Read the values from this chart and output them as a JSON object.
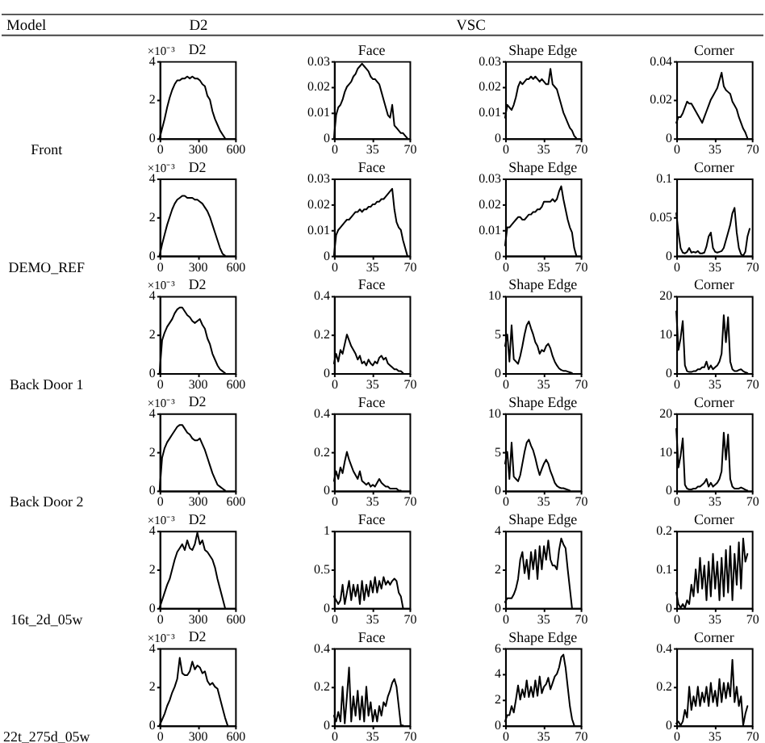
{
  "chart_data": [
    {
      "type": "other",
      "annotations": [
        "Model",
        "D2",
        "VSC"
      ]
    },
    {
      "type": "other",
      "title": "Front"
    },
    {
      "type": "line",
      "title": "D2",
      "annotations": [
        "×10⁻³"
      ],
      "color": "#000000",
      "xlim": [
        0,
        600
      ],
      "xticks": [
        0,
        300,
        600
      ],
      "ylim": [
        0,
        4
      ],
      "yticks": [
        0,
        2,
        4
      ],
      "x": [
        0,
        20,
        40,
        60,
        80,
        100,
        120,
        140,
        160,
        180,
        200,
        220,
        240,
        260,
        280,
        300,
        320,
        340,
        360,
        380,
        400,
        420,
        440,
        460,
        480,
        500,
        520
      ],
      "values": [
        0,
        0.5,
        1,
        1.6,
        2.1,
        2.5,
        2.8,
        3,
        3,
        3.1,
        3.1,
        3.2,
        3.1,
        3.2,
        3.1,
        3.1,
        3,
        2.8,
        2.7,
        2.2,
        2,
        1.4,
        1,
        0.7,
        0.4,
        0.2,
        0
      ]
    },
    {
      "type": "line",
      "title": "Face",
      "color": "#000000",
      "xlim": [
        0,
        70
      ],
      "xticks": [
        0,
        35,
        70
      ],
      "ylim": [
        0,
        0.03
      ],
      "yticks": [
        0,
        0.01,
        0.02,
        0.03
      ],
      "x": [
        0,
        2,
        4,
        6,
        8,
        10,
        12,
        14,
        16,
        18,
        20,
        22,
        24,
        26,
        28,
        30,
        32,
        34,
        36,
        38,
        40,
        42,
        44,
        46,
        48,
        50,
        52,
        54,
        56,
        58,
        60,
        62,
        64,
        66,
        68
      ],
      "values": [
        0,
        0.009,
        0.012,
        0.013,
        0.015,
        0.018,
        0.02,
        0.021,
        0.022,
        0.024,
        0.025,
        0.027,
        0.028,
        0.029,
        0.028,
        0.027,
        0.026,
        0.024,
        0.023,
        0.023,
        0.022,
        0.021,
        0.018,
        0.015,
        0.012,
        0.009,
        0.008,
        0.013,
        0.005,
        0.004,
        0.003,
        0.002,
        0.002,
        0.001,
        0
      ]
    },
    {
      "type": "line",
      "title": "Shape Edge",
      "color": "#000000",
      "xlim": [
        0,
        70
      ],
      "xticks": [
        0,
        35,
        70
      ],
      "ylim": [
        0,
        0.03
      ],
      "yticks": [
        0,
        0.01,
        0.02,
        0.03
      ],
      "x": [
        0,
        2,
        4,
        6,
        8,
        10,
        12,
        14,
        16,
        18,
        20,
        22,
        24,
        26,
        28,
        30,
        32,
        34,
        36,
        38,
        40,
        42,
        44,
        46,
        48,
        50,
        52,
        54,
        56,
        58,
        60,
        62,
        64,
        66
      ],
      "values": [
        0.008,
        0.013,
        0.012,
        0.011,
        0.013,
        0.016,
        0.02,
        0.022,
        0.021,
        0.022,
        0.023,
        0.023,
        0.024,
        0.023,
        0.024,
        0.023,
        0.022,
        0.023,
        0.022,
        0.021,
        0.021,
        0.027,
        0.021,
        0.02,
        0.019,
        0.016,
        0.013,
        0.01,
        0.008,
        0.006,
        0.004,
        0.003,
        0.001,
        0
      ]
    },
    {
      "type": "line",
      "title": "Corner",
      "color": "#000000",
      "xlim": [
        0,
        70
      ],
      "xticks": [
        0,
        35,
        70
      ],
      "ylim": [
        0,
        0.04
      ],
      "yticks": [
        0,
        0.02,
        0.04
      ],
      "x": [
        0,
        2,
        4,
        6,
        8,
        10,
        12,
        14,
        16,
        18,
        20,
        22,
        24,
        26,
        28,
        30,
        32,
        34,
        36,
        38,
        40,
        42,
        44,
        46,
        48,
        50,
        52,
        54,
        56,
        58,
        60,
        62,
        64,
        66
      ],
      "values": [
        0.008,
        0.011,
        0.011,
        0.013,
        0.016,
        0.019,
        0.018,
        0.018,
        0.016,
        0.014,
        0.012,
        0.01,
        0.008,
        0.011,
        0.014,
        0.017,
        0.02,
        0.022,
        0.024,
        0.026,
        0.03,
        0.034,
        0.027,
        0.025,
        0.024,
        0.023,
        0.019,
        0.017,
        0.015,
        0.011,
        0.008,
        0.005,
        0.003,
        0
      ]
    },
    {
      "type": "other",
      "title": "DEMO_REF"
    },
    {
      "type": "line",
      "title": "D2",
      "annotations": [
        "×10⁻³"
      ],
      "color": "#000000",
      "xlim": [
        0,
        600
      ],
      "xticks": [
        0,
        300,
        600
      ],
      "ylim": [
        0,
        4
      ],
      "yticks": [
        0,
        2,
        4
      ],
      "x": [
        0,
        20,
        40,
        60,
        80,
        100,
        120,
        140,
        160,
        180,
        200,
        220,
        240,
        260,
        280,
        300,
        320,
        340,
        360,
        380,
        400,
        420,
        440,
        460,
        480,
        500,
        520
      ],
      "values": [
        0,
        0.6,
        1.1,
        1.6,
        2,
        2.4,
        2.7,
        2.9,
        3,
        3.1,
        3.1,
        3,
        3,
        3,
        2.9,
        2.9,
        2.8,
        2.7,
        2.5,
        2.3,
        2,
        1.6,
        1.2,
        0.8,
        0.4,
        0.1,
        0
      ]
    },
    {
      "type": "line",
      "title": "Face",
      "color": "#000000",
      "xlim": [
        0,
        70
      ],
      "xticks": [
        0,
        35,
        70
      ],
      "ylim": [
        0,
        0.03
      ],
      "yticks": [
        0,
        0.01,
        0.02,
        0.03
      ],
      "x": [
        0,
        2,
        4,
        6,
        8,
        10,
        12,
        14,
        16,
        18,
        20,
        22,
        24,
        26,
        28,
        30,
        32,
        34,
        36,
        38,
        40,
        42,
        44,
        46,
        48,
        50,
        52,
        54,
        56,
        58,
        60,
        62,
        64,
        66,
        68
      ],
      "values": [
        0,
        0.008,
        0.01,
        0.011,
        0.012,
        0.013,
        0.014,
        0.014,
        0.015,
        0.016,
        0.017,
        0.017,
        0.018,
        0.017,
        0.018,
        0.018,
        0.019,
        0.019,
        0.02,
        0.02,
        0.021,
        0.021,
        0.022,
        0.022,
        0.023,
        0.024,
        0.025,
        0.026,
        0.018,
        0.013,
        0.011,
        0.01,
        0.006,
        0.003,
        0
      ]
    },
    {
      "type": "line",
      "title": "Shape Edge",
      "color": "#000000",
      "xlim": [
        0,
        70
      ],
      "xticks": [
        0,
        35,
        70
      ],
      "ylim": [
        0,
        0.03
      ],
      "yticks": [
        0,
        0.01,
        0.02,
        0.03
      ],
      "x": [
        0,
        2,
        4,
        6,
        8,
        10,
        12,
        14,
        16,
        18,
        20,
        22,
        24,
        26,
        28,
        30,
        32,
        34,
        36,
        38,
        40,
        42,
        44,
        46,
        48,
        50,
        52,
        54,
        56,
        58,
        60,
        62,
        64,
        66
      ],
      "values": [
        0.004,
        0.011,
        0.011,
        0.012,
        0.013,
        0.014,
        0.015,
        0.015,
        0.014,
        0.014,
        0.015,
        0.016,
        0.016,
        0.017,
        0.017,
        0.018,
        0.018,
        0.019,
        0.021,
        0.021,
        0.021,
        0.021,
        0.022,
        0.021,
        0.022,
        0.025,
        0.027,
        0.022,
        0.018,
        0.014,
        0.011,
        0.009,
        0.003,
        0
      ]
    },
    {
      "type": "line",
      "title": "Corner",
      "color": "#000000",
      "xlim": [
        0,
        70
      ],
      "xticks": [
        0,
        35,
        70
      ],
      "ylim": [
        0,
        0.1
      ],
      "yticks": [
        0,
        0.05,
        0.1
      ],
      "x": [
        0,
        2,
        4,
        6,
        8,
        10,
        12,
        14,
        16,
        18,
        20,
        22,
        24,
        26,
        28,
        30,
        32,
        34,
        36,
        38,
        40,
        42,
        44,
        46,
        48,
        50,
        52,
        54,
        56,
        58,
        60,
        62,
        64,
        66,
        68
      ],
      "values": [
        0.055,
        0.03,
        0.01,
        0.004,
        0.003,
        0.005,
        0.01,
        0.004,
        0.005,
        0.004,
        0.006,
        0.003,
        0.003,
        0.004,
        0.012,
        0.025,
        0.03,
        0.01,
        0.005,
        0.004,
        0.005,
        0.006,
        0.01,
        0.02,
        0.03,
        0.04,
        0.055,
        0.062,
        0.03,
        0.01,
        0.002,
        0,
        0.005,
        0.025,
        0.035
      ]
    },
    {
      "type": "other",
      "title": "Back Door 1"
    },
    {
      "type": "line",
      "title": "D2",
      "annotations": [
        "×10⁻³"
      ],
      "color": "#000000",
      "xlim": [
        0,
        600
      ],
      "xticks": [
        0,
        300,
        600
      ],
      "ylim": [
        0,
        4
      ],
      "yticks": [
        0,
        2,
        4
      ],
      "x": [
        0,
        20,
        40,
        60,
        80,
        100,
        120,
        140,
        160,
        180,
        200,
        220,
        240,
        260,
        280,
        300,
        320,
        340,
        360,
        380,
        400,
        420,
        440,
        460,
        480,
        500,
        520
      ],
      "values": [
        0,
        1.7,
        2.1,
        2.4,
        2.6,
        2.8,
        3.1,
        3.3,
        3.4,
        3.4,
        3.2,
        3,
        2.9,
        2.7,
        2.6,
        2.7,
        2.8,
        2.5,
        2.3,
        1.8,
        1.5,
        1,
        0.7,
        0.4,
        0.2,
        0.1,
        0
      ]
    },
    {
      "type": "line",
      "title": "Face",
      "color": "#000000",
      "xlim": [
        0,
        70
      ],
      "xticks": [
        0,
        35,
        70
      ],
      "ylim": [
        0,
        0.4
      ],
      "yticks": [
        0,
        0.2,
        0.4
      ],
      "x": [
        0,
        2,
        4,
        6,
        8,
        10,
        12,
        14,
        16,
        18,
        20,
        22,
        24,
        26,
        28,
        30,
        32,
        34,
        36,
        38,
        40,
        42,
        44,
        46,
        48,
        50,
        52,
        54,
        56,
        58,
        60,
        62,
        64
      ],
      "values": [
        0.05,
        0.1,
        0.06,
        0.12,
        0.1,
        0.15,
        0.2,
        0.17,
        0.14,
        0.12,
        0.1,
        0.07,
        0.09,
        0.05,
        0.06,
        0.04,
        0.07,
        0.05,
        0.04,
        0.06,
        0.05,
        0.08,
        0.09,
        0.07,
        0.08,
        0.05,
        0.04,
        0.03,
        0.02,
        0.02,
        0.01,
        0.01,
        0
      ]
    },
    {
      "type": "line",
      "title": "Shape Edge",
      "color": "#000000",
      "xlim": [
        0,
        70
      ],
      "xticks": [
        0,
        35,
        70
      ],
      "ylim": [
        0,
        10
      ],
      "yticks": [
        0,
        5,
        10
      ],
      "x": [
        0,
        2,
        4,
        6,
        8,
        10,
        12,
        14,
        16,
        18,
        20,
        22,
        24,
        26,
        28,
        30,
        32,
        34,
        36,
        38,
        40,
        42,
        44,
        46,
        48,
        50,
        52,
        54,
        56,
        58,
        60,
        62
      ],
      "values": [
        3.5,
        5,
        1.5,
        6.2,
        1.8,
        1.5,
        1.2,
        2.2,
        3.5,
        5,
        6.2,
        6.7,
        5.8,
        5,
        4,
        3.5,
        2.5,
        3,
        2.8,
        3.5,
        3.8,
        3.2,
        2.2,
        1.5,
        1,
        0.6,
        0.4,
        0.3,
        0.3,
        0.2,
        0.1,
        0
      ]
    },
    {
      "type": "line",
      "title": "Corner",
      "color": "#000000",
      "xlim": [
        0,
        70
      ],
      "xticks": [
        0,
        35,
        70
      ],
      "ylim": [
        0,
        20
      ],
      "yticks": [
        0,
        10,
        20
      ],
      "x": [
        0,
        2,
        4,
        6,
        8,
        10,
        12,
        14,
        16,
        18,
        20,
        22,
        24,
        26,
        28,
        30,
        32,
        34,
        36,
        38,
        40,
        42,
        44,
        46,
        48,
        50,
        52,
        54,
        56,
        58,
        60,
        62,
        64,
        66
      ],
      "values": [
        16,
        6,
        9,
        13.5,
        2,
        0.5,
        0.3,
        0.3,
        0.5,
        0.5,
        1,
        1,
        1.5,
        1.5,
        3,
        1,
        2,
        1,
        1.5,
        2,
        3,
        5,
        15,
        8,
        14.5,
        3,
        1,
        0.5,
        0.5,
        0.8,
        1,
        0.5,
        0.2,
        0
      ]
    },
    {
      "type": "other",
      "title": "Back Door 2"
    },
    {
      "type": "line",
      "title": "D2",
      "annotations": [
        "×10⁻³"
      ],
      "color": "#000000",
      "xlim": [
        0,
        600
      ],
      "xticks": [
        0,
        300,
        600
      ],
      "ylim": [
        0,
        4
      ],
      "yticks": [
        0,
        2,
        4
      ],
      "x": [
        0,
        20,
        40,
        60,
        80,
        100,
        120,
        140,
        160,
        180,
        200,
        220,
        240,
        260,
        280,
        300,
        320,
        340,
        360,
        380,
        400,
        420,
        440,
        460,
        480,
        500,
        520
      ],
      "values": [
        0,
        1.7,
        2.2,
        2.5,
        2.7,
        2.9,
        3.1,
        3.3,
        3.4,
        3.4,
        3.2,
        3,
        2.9,
        2.7,
        2.6,
        2.6,
        2.7,
        2.4,
        2.1,
        1.7,
        1.3,
        0.9,
        0.6,
        0.3,
        0.2,
        0.1,
        0
      ]
    },
    {
      "type": "line",
      "title": "Face",
      "color": "#000000",
      "xlim": [
        0,
        70
      ],
      "xticks": [
        0,
        35,
        70
      ],
      "ylim": [
        0,
        0.4
      ],
      "yticks": [
        0,
        0.2,
        0.4
      ],
      "x": [
        0,
        2,
        4,
        6,
        8,
        10,
        12,
        14,
        16,
        18,
        20,
        22,
        24,
        26,
        28,
        30,
        32,
        34,
        36,
        38,
        40,
        42,
        44,
        46,
        48,
        50,
        52,
        54,
        56,
        58,
        60,
        62
      ],
      "values": [
        0.05,
        0.1,
        0.06,
        0.12,
        0.09,
        0.15,
        0.2,
        0.16,
        0.13,
        0.1,
        0.08,
        0.06,
        0.1,
        0.05,
        0.04,
        0.03,
        0.04,
        0.02,
        0.03,
        0.02,
        0.04,
        0.06,
        0.04,
        0.03,
        0.02,
        0.02,
        0.01,
        0.01,
        0.01,
        0.01,
        0,
        0
      ]
    },
    {
      "type": "line",
      "title": "Shape Edge",
      "color": "#000000",
      "xlim": [
        0,
        70
      ],
      "xticks": [
        0,
        35,
        70
      ],
      "ylim": [
        0,
        10
      ],
      "yticks": [
        0,
        5,
        10
      ],
      "x": [
        0,
        2,
        4,
        6,
        8,
        10,
        12,
        14,
        16,
        18,
        20,
        22,
        24,
        26,
        28,
        30,
        32,
        34,
        36,
        38,
        40,
        42,
        44,
        46,
        48,
        50,
        52,
        54,
        56,
        58,
        60
      ],
      "values": [
        3.5,
        5,
        1.5,
        6.2,
        1.8,
        1.5,
        1.2,
        2,
        3.5,
        5,
        6.2,
        6.6,
        5.8,
        5.2,
        4.2,
        3,
        2,
        2.8,
        3.5,
        4,
        3.5,
        2.5,
        1.8,
        1,
        0.6,
        0.4,
        0.3,
        0.3,
        0.2,
        0.1,
        0
      ]
    },
    {
      "type": "line",
      "title": "Corner",
      "color": "#000000",
      "xlim": [
        0,
        70
      ],
      "xticks": [
        0,
        35,
        70
      ],
      "ylim": [
        0,
        20
      ],
      "yticks": [
        0,
        10,
        20
      ],
      "x": [
        0,
        2,
        4,
        6,
        8,
        10,
        12,
        14,
        16,
        18,
        20,
        22,
        24,
        26,
        28,
        30,
        32,
        34,
        36,
        38,
        40,
        42,
        44,
        46,
        48,
        50,
        52,
        54,
        56,
        58,
        60,
        62,
        64,
        66
      ],
      "values": [
        16,
        6,
        9,
        13.5,
        1.5,
        0.5,
        0.3,
        0.3,
        0.5,
        0.5,
        1,
        1,
        1.5,
        2,
        3,
        1,
        2,
        1,
        1.5,
        2,
        3,
        5,
        15,
        8,
        14.5,
        3,
        1,
        0.5,
        0.5,
        0.5,
        0.8,
        0.5,
        0.2,
        0
      ]
    },
    {
      "type": "other",
      "title": "16t_2d_05w"
    },
    {
      "type": "line",
      "title": "D2",
      "annotations": [
        "×10⁻³"
      ],
      "color": "#000000",
      "xlim": [
        0,
        600
      ],
      "xticks": [
        0,
        300,
        600
      ],
      "ylim": [
        0,
        4
      ],
      "yticks": [
        0,
        2,
        4
      ],
      "x": [
        0,
        20,
        40,
        60,
        80,
        100,
        120,
        140,
        160,
        180,
        200,
        220,
        240,
        260,
        280,
        300,
        320,
        340,
        360,
        380,
        400,
        420,
        440,
        460,
        480,
        500,
        520
      ],
      "values": [
        0,
        0.4,
        0.8,
        1.2,
        1.5,
        2,
        2.5,
        2.9,
        3.1,
        3.3,
        3,
        3.5,
        3.1,
        3,
        3.3,
        3.9,
        3.3,
        3.5,
        3,
        2.9,
        2.7,
        2.5,
        2.1,
        1.5,
        1,
        0.5,
        0
      ]
    },
    {
      "type": "line",
      "title": "Face",
      "color": "#000000",
      "xlim": [
        0,
        70
      ],
      "xticks": [
        0,
        35,
        70
      ],
      "ylim": [
        0,
        1
      ],
      "yticks": [
        0,
        0.5,
        1
      ],
      "x": [
        0,
        2,
        4,
        6,
        8,
        10,
        12,
        14,
        16,
        18,
        20,
        22,
        24,
        26,
        28,
        30,
        32,
        34,
        36,
        38,
        40,
        42,
        44,
        46,
        48,
        50,
        52,
        54,
        56,
        58,
        60,
        62,
        64
      ],
      "values": [
        0.15,
        0.1,
        0.05,
        0.1,
        0.3,
        0.05,
        0.2,
        0.35,
        0.1,
        0.3,
        0.15,
        0.3,
        0.05,
        0.35,
        0.1,
        0.3,
        0.15,
        0.35,
        0.2,
        0.4,
        0.2,
        0.35,
        0.25,
        0.4,
        0.3,
        0.35,
        0.3,
        0.35,
        0.38,
        0.35,
        0.2,
        0.15,
        0
      ]
    },
    {
      "type": "line",
      "title": "Shape Edge",
      "color": "#000000",
      "xlim": [
        0,
        70
      ],
      "xticks": [
        0,
        35,
        70
      ],
      "ylim": [
        0,
        4
      ],
      "yticks": [
        0,
        2,
        4
      ],
      "x": [
        0,
        2,
        4,
        6,
        8,
        10,
        12,
        14,
        16,
        18,
        20,
        22,
        24,
        26,
        28,
        30,
        32,
        34,
        36,
        38,
        40,
        42,
        44,
        46,
        48,
        50,
        52,
        54,
        56,
        58,
        60,
        62
      ],
      "values": [
        0.3,
        0.5,
        0.5,
        0.5,
        0.7,
        1,
        1.5,
        2.5,
        2.9,
        1.8,
        2.5,
        1.5,
        2.9,
        2,
        3,
        1.5,
        3.2,
        2,
        3.2,
        2.5,
        3.5,
        2.5,
        2.2,
        2.2,
        2,
        3,
        3.6,
        3.3,
        3.1,
        2,
        1,
        0
      ]
    },
    {
      "type": "line",
      "title": "Corner",
      "color": "#000000",
      "xlim": [
        0,
        70
      ],
      "xticks": [
        0,
        35,
        70
      ],
      "ylim": [
        0,
        0.2
      ],
      "yticks": [
        0,
        0.1,
        0.2
      ],
      "x": [
        0,
        2,
        4,
        6,
        8,
        10,
        12,
        14,
        16,
        18,
        20,
        22,
        24,
        26,
        28,
        30,
        32,
        34,
        36,
        38,
        40,
        42,
        44,
        46,
        48,
        50,
        52,
        54,
        56,
        58,
        60,
        62,
        64,
        66
      ],
      "values": [
        0.04,
        0.01,
        0,
        0.01,
        0,
        0.02,
        0.01,
        0.06,
        0.03,
        0.1,
        0.04,
        0.13,
        0.05,
        0.11,
        0.02,
        0.12,
        0.03,
        0.14,
        0.05,
        0.12,
        0.02,
        0.13,
        0.03,
        0.15,
        0.04,
        0.16,
        0.02,
        0.14,
        0.06,
        0.17,
        0.05,
        0.18,
        0.12,
        0.14
      ]
    },
    {
      "type": "other",
      "title": "22t_275d_05w"
    },
    {
      "type": "line",
      "title": "D2",
      "annotations": [
        "×10⁻³"
      ],
      "color": "#000000",
      "xlim": [
        0,
        600
      ],
      "xticks": [
        0,
        300,
        600
      ],
      "ylim": [
        0,
        4
      ],
      "yticks": [
        0,
        2,
        4
      ],
      "x": [
        0,
        20,
        40,
        60,
        80,
        100,
        120,
        140,
        160,
        180,
        200,
        220,
        240,
        260,
        280,
        300,
        320,
        340,
        360,
        380,
        400,
        420,
        440,
        460,
        480,
        500,
        520,
        540
      ],
      "values": [
        0,
        0.3,
        0.6,
        1,
        1.3,
        1.7,
        2,
        2.4,
        3.5,
        2.7,
        2.6,
        2.6,
        2.8,
        3.3,
        2.9,
        3.1,
        3,
        2.7,
        2.8,
        2.3,
        2.1,
        2.2,
        2,
        1.9,
        1.4,
        0.9,
        0.4,
        0
      ]
    },
    {
      "type": "line",
      "title": "Face",
      "color": "#000000",
      "xlim": [
        0,
        70
      ],
      "xticks": [
        0,
        35,
        70
      ],
      "ylim": [
        0,
        0.4
      ],
      "yticks": [
        0,
        0.2,
        0.4
      ],
      "x": [
        0,
        2,
        4,
        6,
        8,
        10,
        12,
        14,
        16,
        18,
        20,
        22,
        24,
        26,
        28,
        30,
        32,
        34,
        36,
        38,
        40,
        42,
        44,
        46,
        48,
        50,
        52,
        54,
        56,
        58,
        60,
        62,
        64
      ],
      "values": [
        0.05,
        0.02,
        0.07,
        0.02,
        0.2,
        0.01,
        0.15,
        0.3,
        0.02,
        0.15,
        0.05,
        0.18,
        0.03,
        0.15,
        0.02,
        0.2,
        0.05,
        0.12,
        0.02,
        0.08,
        0.02,
        0.1,
        0.05,
        0.12,
        0.1,
        0.15,
        0.18,
        0.22,
        0.24,
        0.2,
        0.1,
        0,
        0
      ]
    },
    {
      "type": "line",
      "title": "Shape Edge",
      "color": "#000000",
      "xlim": [
        0,
        70
      ],
      "xticks": [
        0,
        35,
        70
      ],
      "ylim": [
        0,
        6
      ],
      "yticks": [
        0,
        2,
        4,
        6
      ],
      "x": [
        0,
        2,
        4,
        6,
        8,
        10,
        12,
        14,
        16,
        18,
        20,
        22,
        24,
        26,
        28,
        30,
        32,
        34,
        36,
        38,
        40,
        42,
        44,
        46,
        48,
        50,
        52,
        54,
        56,
        58,
        60,
        62,
        64
      ],
      "values": [
        0.3,
        0.8,
        0.8,
        1.5,
        1,
        2,
        3.1,
        2,
        2.8,
        2.2,
        3.5,
        2.2,
        3,
        2.2,
        3.5,
        2.3,
        3.8,
        2.5,
        3,
        3.2,
        3.7,
        2.8,
        3.3,
        3.8,
        4,
        4.5,
        5.3,
        5.5,
        4.5,
        3,
        1.5,
        0.5,
        0
      ]
    },
    {
      "type": "line",
      "title": "Corner",
      "color": "#000000",
      "xlim": [
        0,
        70
      ],
      "xticks": [
        0,
        35,
        70
      ],
      "ylim": [
        0,
        0.4
      ],
      "yticks": [
        0,
        0.2,
        0.4
      ],
      "x": [
        0,
        2,
        4,
        6,
        8,
        10,
        12,
        14,
        16,
        18,
        20,
        22,
        24,
        26,
        28,
        30,
        32,
        34,
        36,
        38,
        40,
        42,
        44,
        46,
        48,
        50,
        52,
        54,
        56,
        58,
        60,
        62,
        64,
        66
      ],
      "values": [
        0.01,
        0.02,
        0,
        0.02,
        0.08,
        0.04,
        0.2,
        0.08,
        0.15,
        0.1,
        0.2,
        0.1,
        0.17,
        0.12,
        0.2,
        0.1,
        0.22,
        0.12,
        0.18,
        0.1,
        0.24,
        0.12,
        0.22,
        0.14,
        0.22,
        0.15,
        0.34,
        0.12,
        0.2,
        0.1,
        0.15,
        0,
        0.06,
        0.1
      ]
    }
  ]
}
